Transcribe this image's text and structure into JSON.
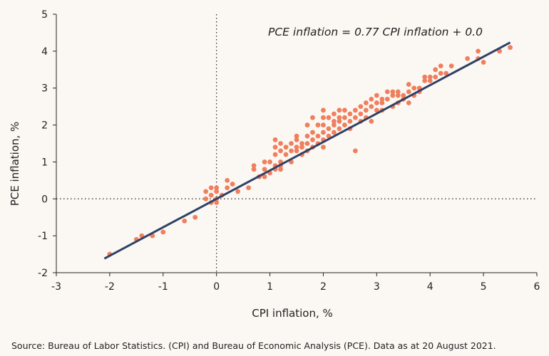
{
  "chart_data": {
    "type": "scatter",
    "title": "",
    "xlabel": "CPI inflation, %",
    "ylabel": "PCE inflation, %",
    "xlim": [
      -3,
      6
    ],
    "ylim": [
      -2,
      5
    ],
    "xticks": [
      "-3",
      "-2",
      "-1",
      "0",
      "1",
      "2",
      "3",
      "4",
      "5",
      "6"
    ],
    "yticks": [
      "-2",
      "-1",
      "0",
      "1",
      "2",
      "3",
      "4",
      "5"
    ],
    "annotation": "PCE inflation = 0.77 CPI inflation + 0.0",
    "trendline": {
      "slope": 0.77,
      "intercept": 0.0,
      "x_range": [
        -2.1,
        5.5
      ]
    },
    "reference_lines": {
      "x_zero": true,
      "y_zero": true,
      "style": "dotted"
    },
    "grid": false,
    "colors": {
      "points": "#f07f5e",
      "trendline": "#2f4166",
      "axis": "#222222"
    },
    "points": [
      [
        -2.0,
        -1.5
      ],
      [
        -1.5,
        -1.1
      ],
      [
        -1.4,
        -1.0
      ],
      [
        -1.2,
        -1.0
      ],
      [
        -1.0,
        -0.9
      ],
      [
        -0.6,
        -0.6
      ],
      [
        -0.4,
        -0.5
      ],
      [
        -0.2,
        0.2
      ],
      [
        -0.2,
        0.0
      ],
      [
        -0.1,
        0.3
      ],
      [
        -0.1,
        0.1
      ],
      [
        -0.1,
        -0.1
      ],
      [
        0.0,
        0.3
      ],
      [
        0.0,
        0.2
      ],
      [
        0.0,
        0.0
      ],
      [
        0.0,
        -0.1
      ],
      [
        0.1,
        0.1
      ],
      [
        0.2,
        0.3
      ],
      [
        0.2,
        0.5
      ],
      [
        0.3,
        0.4
      ],
      [
        0.4,
        0.2
      ],
      [
        0.6,
        0.3
      ],
      [
        0.7,
        0.8
      ],
      [
        0.7,
        0.9
      ],
      [
        0.8,
        0.6
      ],
      [
        0.9,
        0.6
      ],
      [
        0.9,
        0.8
      ],
      [
        0.9,
        1.0
      ],
      [
        1.0,
        0.7
      ],
      [
        1.0,
        1.0
      ],
      [
        1.1,
        0.8
      ],
      [
        1.1,
        0.9
      ],
      [
        1.1,
        1.2
      ],
      [
        1.1,
        1.4
      ],
      [
        1.1,
        1.6
      ],
      [
        1.2,
        1.0
      ],
      [
        1.2,
        1.3
      ],
      [
        1.2,
        0.9
      ],
      [
        1.2,
        0.8
      ],
      [
        1.2,
        1.5
      ],
      [
        1.3,
        1.2
      ],
      [
        1.3,
        1.4
      ],
      [
        1.4,
        1.0
      ],
      [
        1.4,
        1.3
      ],
      [
        1.4,
        1.5
      ],
      [
        1.5,
        1.6
      ],
      [
        1.5,
        1.3
      ],
      [
        1.5,
        1.4
      ],
      [
        1.5,
        1.7
      ],
      [
        1.6,
        1.2
      ],
      [
        1.6,
        1.4
      ],
      [
        1.6,
        1.5
      ],
      [
        1.7,
        1.3
      ],
      [
        1.7,
        1.5
      ],
      [
        1.7,
        1.7
      ],
      [
        1.7,
        2.0
      ],
      [
        1.8,
        1.4
      ],
      [
        1.8,
        1.6
      ],
      [
        1.8,
        1.8
      ],
      [
        1.8,
        2.2
      ],
      [
        1.9,
        1.5
      ],
      [
        1.9,
        1.7
      ],
      [
        1.9,
        2.0
      ],
      [
        2.0,
        1.6
      ],
      [
        2.0,
        1.8
      ],
      [
        2.0,
        2.0
      ],
      [
        2.0,
        2.2
      ],
      [
        2.0,
        2.4
      ],
      [
        2.0,
        1.4
      ],
      [
        2.1,
        1.7
      ],
      [
        2.1,
        1.9
      ],
      [
        2.1,
        2.2
      ],
      [
        2.2,
        1.8
      ],
      [
        2.2,
        2.0
      ],
      [
        2.2,
        2.3
      ],
      [
        2.2,
        2.1
      ],
      [
        2.3,
        1.9
      ],
      [
        2.3,
        2.1
      ],
      [
        2.3,
        2.4
      ],
      [
        2.3,
        2.2
      ],
      [
        2.4,
        2.0
      ],
      [
        2.4,
        2.2
      ],
      [
        2.4,
        2.4
      ],
      [
        2.5,
        1.9
      ],
      [
        2.5,
        2.1
      ],
      [
        2.5,
        2.3
      ],
      [
        2.6,
        2.2
      ],
      [
        2.6,
        2.4
      ],
      [
        2.6,
        1.3
      ],
      [
        2.7,
        2.1
      ],
      [
        2.7,
        2.3
      ],
      [
        2.7,
        2.5
      ],
      [
        2.8,
        2.2
      ],
      [
        2.8,
        2.4
      ],
      [
        2.8,
        2.6
      ],
      [
        2.9,
        2.1
      ],
      [
        2.9,
        2.5
      ],
      [
        2.9,
        2.7
      ],
      [
        3.0,
        2.4
      ],
      [
        3.0,
        2.6
      ],
      [
        3.0,
        2.8
      ],
      [
        3.1,
        2.6
      ],
      [
        3.1,
        2.7
      ],
      [
        3.1,
        2.4
      ],
      [
        3.2,
        2.9
      ],
      [
        3.2,
        2.7
      ],
      [
        3.3,
        2.5
      ],
      [
        3.3,
        2.8
      ],
      [
        3.3,
        2.9
      ],
      [
        3.4,
        2.6
      ],
      [
        3.4,
        2.8
      ],
      [
        3.4,
        2.9
      ],
      [
        3.5,
        2.7
      ],
      [
        3.5,
        2.8
      ],
      [
        3.6,
        2.9
      ],
      [
        3.6,
        2.6
      ],
      [
        3.6,
        3.1
      ],
      [
        3.7,
        2.8
      ],
      [
        3.7,
        3.0
      ],
      [
        3.8,
        3.0
      ],
      [
        3.8,
        2.9
      ],
      [
        3.9,
        3.3
      ],
      [
        3.9,
        3.2
      ],
      [
        4.0,
        3.3
      ],
      [
        4.0,
        3.2
      ],
      [
        4.1,
        3.5
      ],
      [
        4.1,
        3.3
      ],
      [
        4.2,
        3.4
      ],
      [
        4.2,
        3.6
      ],
      [
        4.3,
        3.4
      ],
      [
        4.4,
        3.6
      ],
      [
        4.7,
        3.8
      ],
      [
        4.9,
        4.0
      ],
      [
        4.9,
        3.8
      ],
      [
        5.0,
        3.7
      ],
      [
        5.3,
        4.0
      ],
      [
        5.5,
        4.1
      ]
    ]
  },
  "source": "Source: Bureau of Labor Statistics. (CPI) and Bureau of Economic Analysis (PCE). Data as at 20 August 2021."
}
